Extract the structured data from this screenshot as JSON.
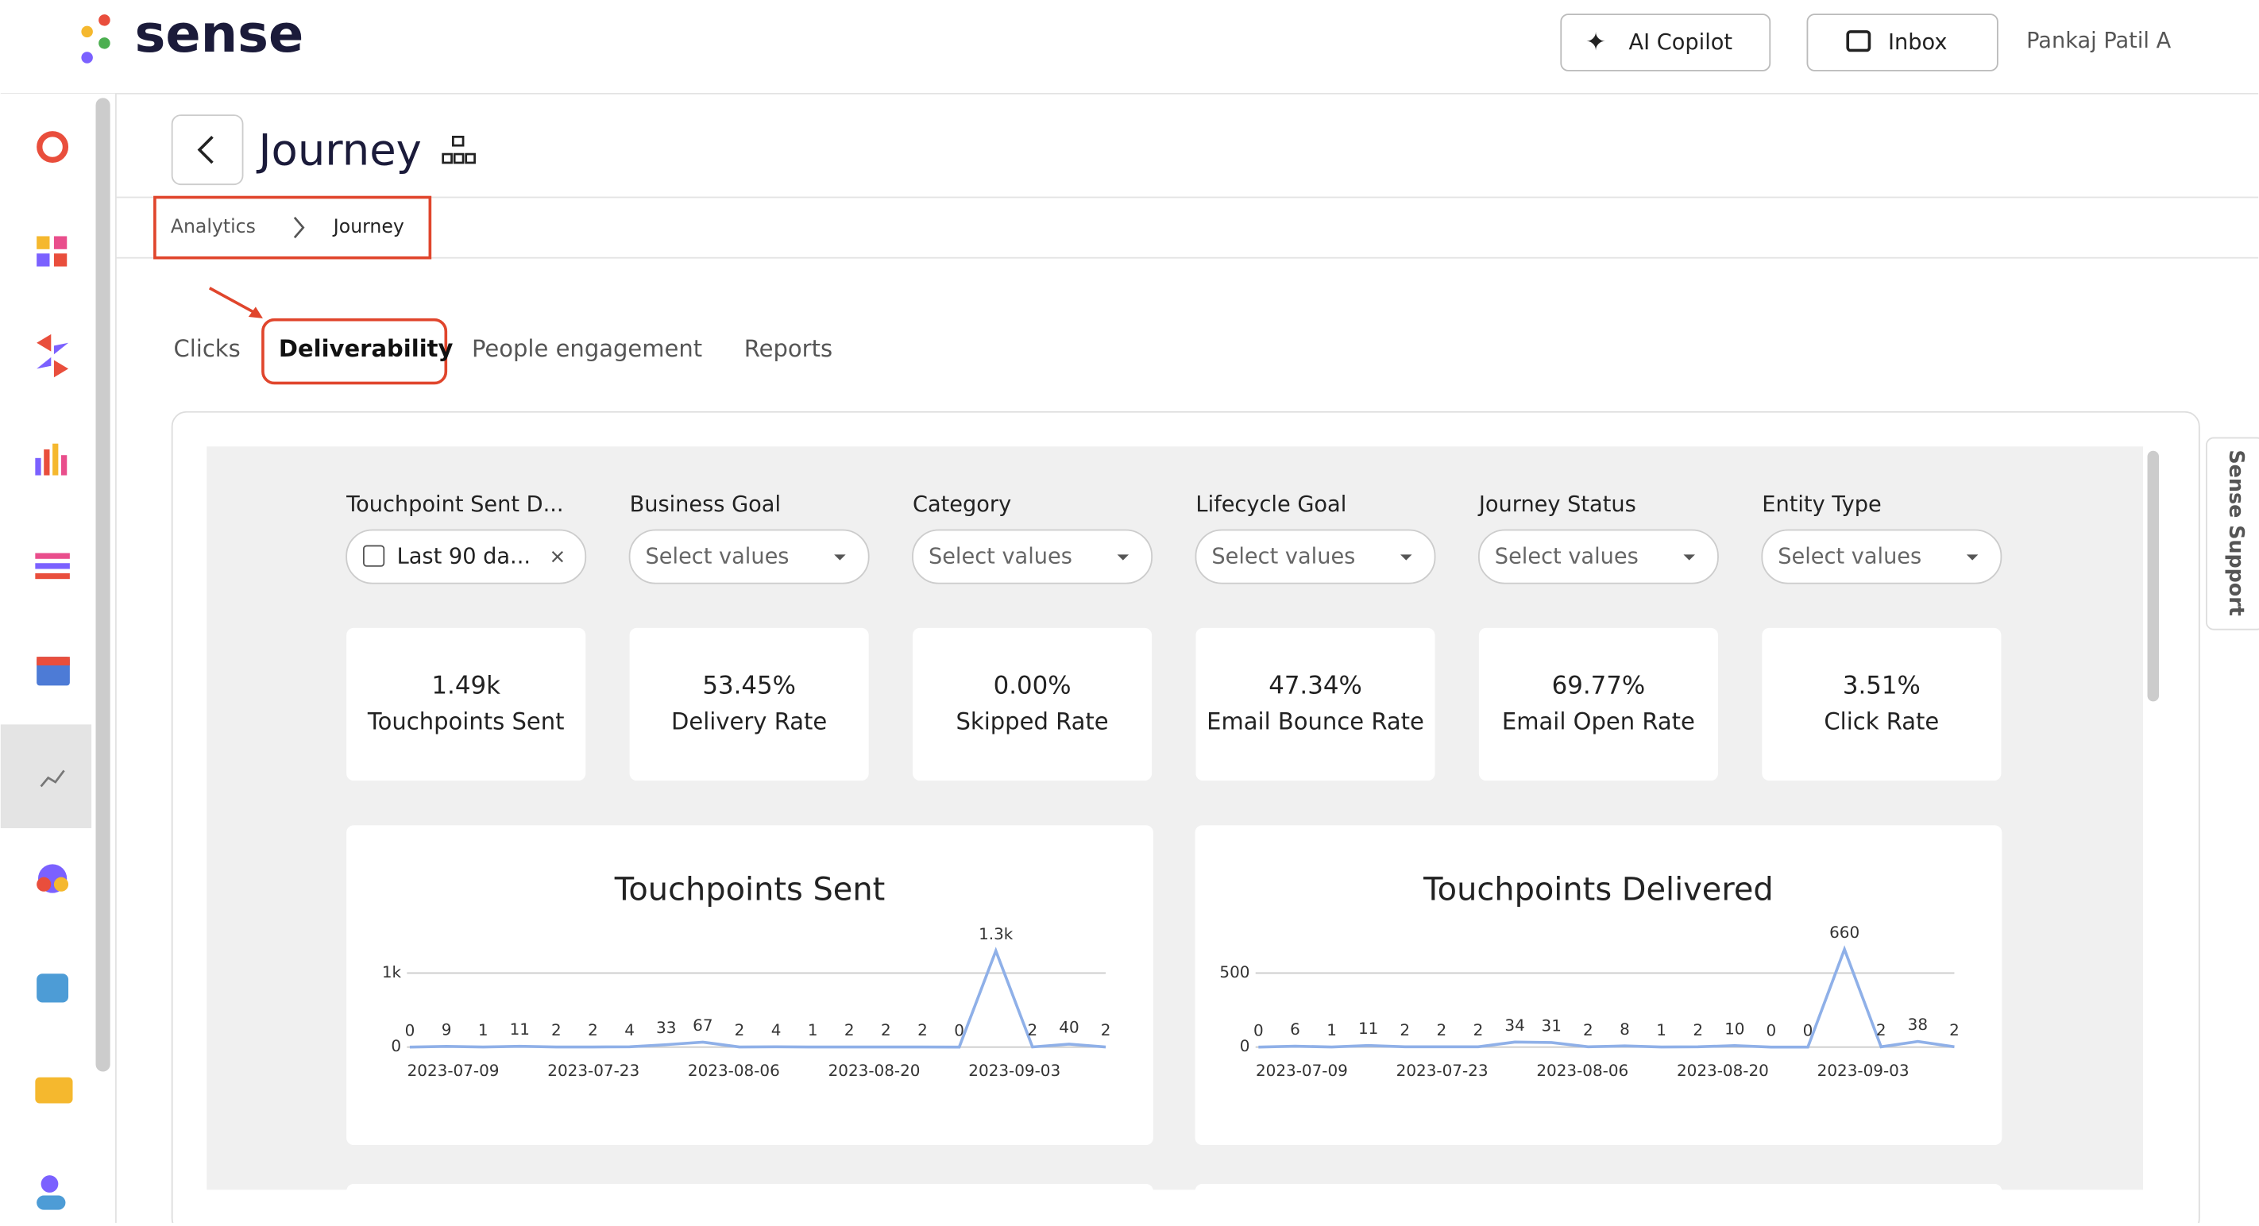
{
  "header": {
    "logo": "sense",
    "copilot": "AI Copilot",
    "inbox": "Inbox",
    "user": "Pankaj Patil A"
  },
  "page_title": "Journey",
  "breadcrumb": [
    "Analytics",
    "Journey"
  ],
  "tabs": [
    "Clicks",
    "Deliverability",
    "People engagement",
    "Reports"
  ],
  "filters": [
    {
      "label": "Touchpoint Sent D...",
      "value": "Last 90 da..."
    },
    {
      "label": "Business Goal",
      "value": "Select values"
    },
    {
      "label": "Category",
      "value": "Select values"
    },
    {
      "label": "Lifecycle Goal",
      "value": "Select values"
    },
    {
      "label": "Journey Status",
      "value": "Select values"
    },
    {
      "label": "Entity Type",
      "value": "Select values"
    }
  ],
  "kpis": [
    {
      "value": "1.49k",
      "label": "Touchpoints Sent"
    },
    {
      "value": "53.45%",
      "label": "Delivery Rate"
    },
    {
      "value": "0.00%",
      "label": "Skipped Rate"
    },
    {
      "value": "47.34%",
      "label": "Email Bounce Rate"
    },
    {
      "value": "69.77%",
      "label": "Email Open Rate"
    },
    {
      "value": "3.51%",
      "label": "Click Rate"
    }
  ],
  "support": "Sense Support",
  "charts": [
    {
      "type": "line",
      "title": "Touchpoints Sent",
      "color": "#8fb0e8",
      "values": [
        0,
        9,
        1,
        11,
        2,
        2,
        4,
        33,
        67,
        2,
        4,
        1,
        2,
        2,
        2,
        0,
        1300,
        2,
        40,
        2
      ],
      "value_labels": [
        "0",
        "9",
        "1",
        "11",
        "2",
        "2",
        "4",
        "33",
        "67",
        "2",
        "4",
        "1",
        "2",
        "2",
        "2",
        "0",
        "1.3k",
        "2",
        "40",
        "2"
      ],
      "xtick_labels": [
        "2023-07-09",
        "2023-07-23",
        "2023-08-06",
        "2023-08-20",
        "2023-09-03"
      ],
      "ylim": [
        0,
        1400
      ],
      "yticks": [
        0,
        {
          "value": 1000,
          "label": "1k"
        }
      ],
      "grid": true
    },
    {
      "type": "line",
      "title": "Touchpoints Delivered",
      "color": "#8fb0e8",
      "values": [
        0,
        6,
        1,
        11,
        2,
        2,
        2,
        34,
        31,
        2,
        8,
        1,
        2,
        10,
        0,
        0,
        660,
        2,
        38,
        2
      ],
      "xtick_labels": [
        "2023-07-09",
        "2023-07-23",
        "2023-08-06",
        "2023-08-20",
        "2023-09-03"
      ],
      "ylim": [
        0,
        700
      ],
      "yticks": [
        0,
        500
      ],
      "grid": true
    }
  ]
}
